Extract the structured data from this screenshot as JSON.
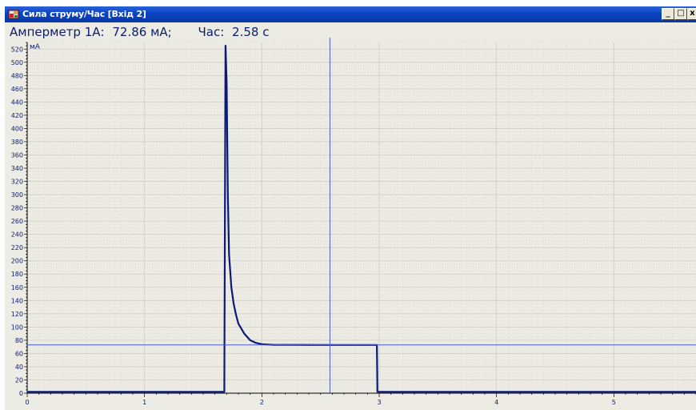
{
  "window": {
    "title": "Сила струму/Час [Вхід 2]",
    "controls": {
      "minimize": "_",
      "restore": "□",
      "close": "x"
    }
  },
  "readout": {
    "channel_label": "Амперметр 1А:",
    "channel_value": "72.86 мА;",
    "time_label": "Час:",
    "time_value": "2.58 с"
  },
  "colors": {
    "trace": "#0a1a78",
    "cursor": "#4a5ad0",
    "grid": "#cfcdc2",
    "plot_bg": "#ecebe4",
    "title_bar": "#0a43c2"
  },
  "chart_data": {
    "type": "line",
    "ylabel": "мА",
    "xlim": [
      0,
      5.7
    ],
    "ylim": [
      0,
      530
    ],
    "y_ticks": [
      0,
      20,
      40,
      60,
      80,
      100,
      120,
      140,
      160,
      180,
      200,
      220,
      240,
      260,
      280,
      300,
      320,
      340,
      360,
      380,
      400,
      420,
      440,
      460,
      480,
      500,
      520
    ],
    "x_ticks": [
      0,
      1,
      2,
      3,
      4,
      5
    ],
    "grid": true,
    "cursor": {
      "x": 2.58,
      "y": 72.86
    },
    "series": [
      {
        "x": [
          0,
          1.68,
          1.69,
          1.7,
          1.71,
          1.72,
          1.74,
          1.76,
          1.78,
          1.8,
          1.85,
          1.9,
          1.95,
          2.0,
          2.1,
          2.3,
          2.6,
          2.98,
          2.985,
          3.0,
          5.7
        ],
        "y": [
          2,
          2,
          525,
          470,
          300,
          210,
          160,
          135,
          118,
          105,
          90,
          80,
          76,
          74,
          73,
          73,
          72.9,
          72.8,
          2,
          2,
          2
        ]
      }
    ]
  }
}
